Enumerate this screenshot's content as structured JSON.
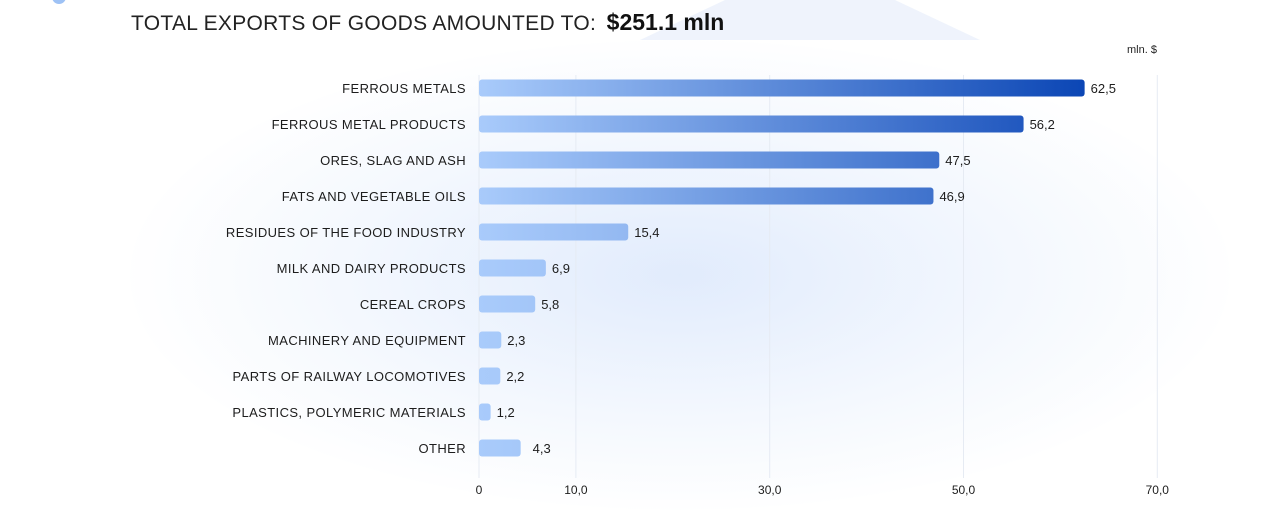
{
  "header": {
    "title": "TOTAL EXPORTS OF GOODS AMOUNTED TO:",
    "total": "$251.1 mln",
    "unit": "mln. $"
  },
  "colors": {
    "bar_start": "#a9cbfb",
    "bar_end_max": "#0b46b5",
    "grid": "#e6ebf3",
    "text": "#1d1d1d"
  },
  "chart_data": {
    "type": "bar",
    "orientation": "horizontal",
    "categories": [
      "FERROUS METALS",
      "FERROUS METAL PRODUCTS",
      "ORES, SLAG AND ASH",
      "FATS AND VEGETABLE OILS",
      "RESIDUES OF THE FOOD INDUSTRY",
      "MILK AND DAIRY PRODUCTS",
      "CEREAL CROPS",
      "MACHINERY AND EQUIPMENT",
      "PARTS OF RAILWAY LOCOMOTIVES",
      "PLASTICS, POLYMERIC MATERIALS",
      "OTHER"
    ],
    "values": [
      62.5,
      56.2,
      47.5,
      46.9,
      15.4,
      6.9,
      5.8,
      2.3,
      2.2,
      1.2,
      4.3
    ],
    "value_labels": [
      "62,5",
      "56,2",
      "47,5",
      "46,9",
      "15,4",
      "6,9",
      "5,8",
      "2,3",
      "2,2",
      "1,2",
      "4,3"
    ],
    "xlim": [
      0,
      70
    ],
    "x_ticks": [
      0,
      10,
      30,
      50,
      70
    ],
    "x_tick_labels": [
      "0",
      "10,0",
      "30,0",
      "50,0",
      "70,0"
    ],
    "grid": true
  }
}
